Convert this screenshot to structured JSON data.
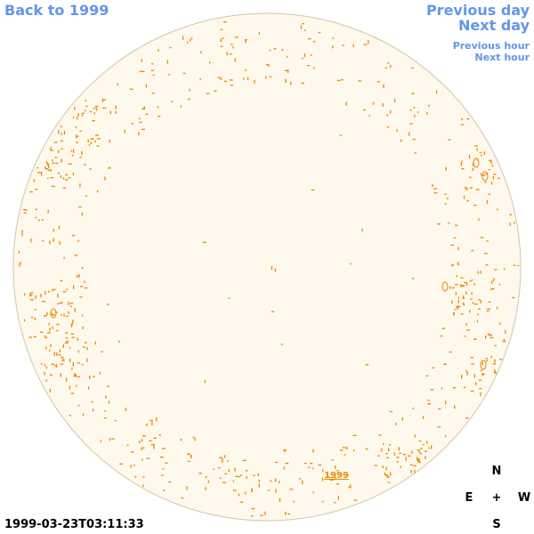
{
  "nav": {
    "back_label": "Back to 1999",
    "prev_day_label": "Previous day",
    "next_day_label": "Next day",
    "prev_hour_label": "Previous hour",
    "next_hour_label": "Next hour"
  },
  "timestamp": "1999-03-23T03:11:33",
  "sun_label": "1999",
  "compass": {
    "n": "N",
    "s": "S",
    "e": "E",
    "w": "W",
    "center": "+"
  },
  "colors": {
    "link": "#6495ED",
    "disk_fill": "#FFF8EC",
    "disk_edge": "#D4C5A8",
    "contour": "#E88A00"
  }
}
